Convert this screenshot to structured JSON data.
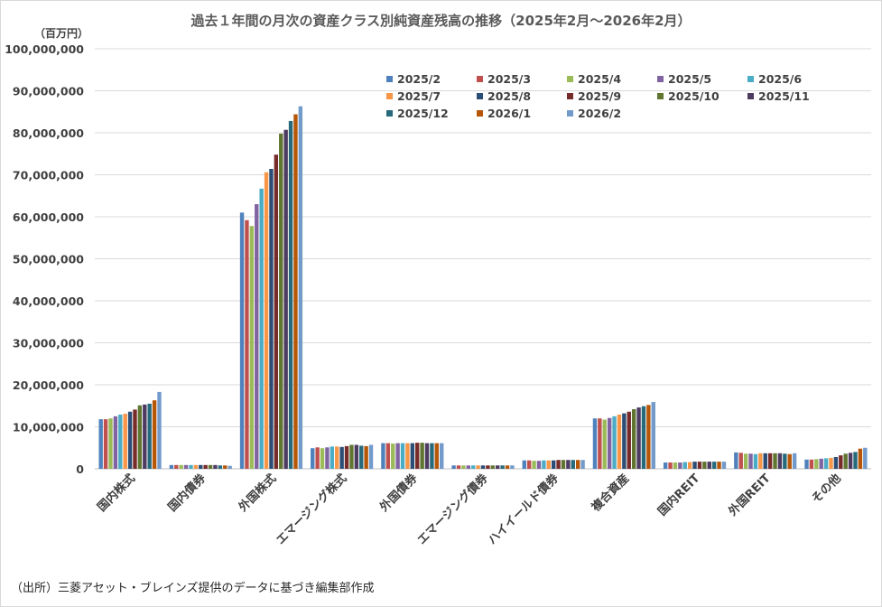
{
  "chart_data": {
    "type": "bar",
    "title": "過去１年間の月次の資産クラス別純資産残高の推移（2025年2月～2026年2月）",
    "ylabel": "（百万円）",
    "xlabel": "",
    "ylim": [
      0,
      100000000
    ],
    "yticks": [
      0,
      10000000,
      20000000,
      30000000,
      40000000,
      50000000,
      60000000,
      70000000,
      80000000,
      90000000,
      100000000
    ],
    "ytick_labels": [
      "0",
      "10,000,000",
      "20,000,000",
      "30,000,000",
      "40,000,000",
      "50,000,000",
      "60,000,000",
      "70,000,000",
      "80,000,000",
      "90,000,000",
      "100,000,000"
    ],
    "grid": true,
    "legend_position": "top-right",
    "categories": [
      "国内株式",
      "国内債券",
      "外国株式",
      "エマージング株式",
      "外国債券",
      "エマージング債券",
      "ハイイールド債券",
      "複合資産",
      "国内REIT",
      "外国REIT",
      "その他"
    ],
    "series": [
      {
        "name": "2025/2",
        "color": "#4F81BD",
        "values": [
          11800000,
          900000,
          61000000,
          4900000,
          6100000,
          800000,
          2000000,
          12000000,
          1500000,
          3900000,
          2200000
        ]
      },
      {
        "name": "2025/3",
        "color": "#C0504D",
        "values": [
          11800000,
          900000,
          59200000,
          5100000,
          6100000,
          800000,
          2000000,
          12000000,
          1500000,
          3800000,
          2200000
        ]
      },
      {
        "name": "2025/4",
        "color": "#9BBB59",
        "values": [
          12000000,
          900000,
          57800000,
          4900000,
          6000000,
          800000,
          1900000,
          11700000,
          1500000,
          3600000,
          2300000
        ]
      },
      {
        "name": "2025/5",
        "color": "#8064A2",
        "values": [
          12500000,
          900000,
          63000000,
          5100000,
          6100000,
          800000,
          1900000,
          12100000,
          1500000,
          3600000,
          2400000
        ]
      },
      {
        "name": "2025/6",
        "color": "#4BACC6",
        "values": [
          12900000,
          900000,
          66700000,
          5300000,
          6100000,
          800000,
          2000000,
          12500000,
          1600000,
          3500000,
          2500000
        ]
      },
      {
        "name": "2025/7",
        "color": "#F79646",
        "values": [
          13100000,
          900000,
          70600000,
          5300000,
          6100000,
          800000,
          2000000,
          12900000,
          1600000,
          3700000,
          2600000
        ]
      },
      {
        "name": "2025/8",
        "color": "#2C4D75",
        "values": [
          13600000,
          900000,
          71400000,
          5200000,
          6100000,
          800000,
          2000000,
          13200000,
          1700000,
          3700000,
          2800000
        ]
      },
      {
        "name": "2025/9",
        "color": "#772C2A",
        "values": [
          14100000,
          900000,
          74800000,
          5400000,
          6200000,
          800000,
          2100000,
          13600000,
          1700000,
          3700000,
          3200000
        ]
      },
      {
        "name": "2025/10",
        "color": "#5F7530",
        "values": [
          15100000,
          900000,
          79800000,
          5700000,
          6200000,
          800000,
          2100000,
          14200000,
          1700000,
          3700000,
          3600000
        ]
      },
      {
        "name": "2025/11",
        "color": "#4D3B62",
        "values": [
          15300000,
          900000,
          80700000,
          5700000,
          6100000,
          800000,
          2100000,
          14600000,
          1700000,
          3700000,
          3800000
        ]
      },
      {
        "name": "2025/12",
        "color": "#276A7C",
        "values": [
          15500000,
          800000,
          82800000,
          5500000,
          6100000,
          800000,
          2100000,
          14900000,
          1700000,
          3600000,
          4000000
        ]
      },
      {
        "name": "2026/1",
        "color": "#B65708",
        "values": [
          16300000,
          800000,
          84400000,
          5400000,
          6100000,
          800000,
          2100000,
          15200000,
          1700000,
          3500000,
          4800000
        ]
      },
      {
        "name": "2026/2",
        "color": "#729ACA",
        "values": [
          18300000,
          700000,
          86300000,
          5700000,
          6100000,
          800000,
          2100000,
          15900000,
          1700000,
          3700000,
          5000000
        ]
      }
    ]
  },
  "source": "（出所）三菱アセット・ブレインズ提供のデータに基づき編集部作成"
}
